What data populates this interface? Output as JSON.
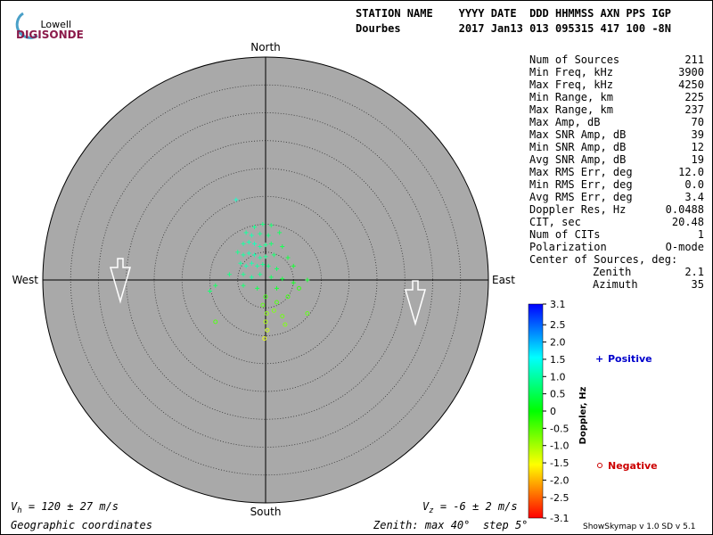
{
  "logo": {
    "top": "Lowell",
    "bottom": "DIGISONDE"
  },
  "header": {
    "line1": "STATION NAME    YYYY DATE  DDD HHMMSS AXN PPS IGP",
    "line2": "Dourbes         2017 Jan13 013 095315 417 100 -8N"
  },
  "compass": {
    "north": "North",
    "south": "South",
    "west": "West",
    "east": "East"
  },
  "stats": [
    [
      "Num of Sources",
      "211"
    ],
    [
      "Min Freq, kHz",
      "3900"
    ],
    [
      "Max Freq, kHz",
      "4250"
    ],
    [
      "Min Range, km",
      "225"
    ],
    [
      "Max Range, km",
      "237"
    ],
    [
      "Max Amp, dB",
      "70"
    ],
    [
      "Max SNR Amp, dB",
      "39"
    ],
    [
      "Min SNR Amp, dB",
      "12"
    ],
    [
      "Avg SNR Amp, dB",
      "19"
    ],
    [
      "Max RMS Err, deg",
      "12.0"
    ],
    [
      "Min RMS Err, deg",
      "0.0"
    ],
    [
      "Avg RMS Err, deg",
      "3.4"
    ],
    [
      "Doppler Res, Hz",
      "0.0488"
    ],
    [
      "CIT, sec",
      "20.48"
    ],
    [
      "Num of CITs",
      "1"
    ],
    [
      "Polarization",
      "O-mode"
    ]
  ],
  "center_of_sources": {
    "title": "Center of Sources, deg:",
    "rows": [
      [
        "Zenith",
        "2.1"
      ],
      [
        "Azimuth",
        "35"
      ]
    ]
  },
  "colorbar": {
    "label": "Doppler, Hz",
    "lim": [
      -3.1,
      3.1
    ],
    "ticks": [
      3.1,
      2.5,
      {
        "value": 2,
        "label": "2.0"
      },
      1.5,
      {
        "value": 1,
        "label": "1.0"
      },
      0.5,
      0,
      -0.5,
      {
        "value": -1,
        "label": "-1.0"
      },
      -1.5,
      {
        "value": -2,
        "label": "-2.0"
      },
      -2.5,
      -3.1
    ]
  },
  "legend": {
    "positive": "Positive",
    "negative": "Negative"
  },
  "zenith_max": 40,
  "sources": [
    [
      -5.3,
      14.4,
      1.2
    ],
    [
      -2.0,
      9.5,
      0.8
    ],
    [
      -0.5,
      10,
      0.7
    ],
    [
      1.0,
      9.8,
      0.6
    ],
    [
      -3.5,
      8.5,
      0.9
    ],
    [
      -2.5,
      8.0,
      1.0
    ],
    [
      -1.0,
      8.3,
      0.8
    ],
    [
      0.5,
      8.0,
      0.7
    ],
    [
      2.5,
      8.5,
      0.5
    ],
    [
      -4.0,
      6.5,
      0.9
    ],
    [
      -3.0,
      6.8,
      1.0
    ],
    [
      -2.0,
      6.5,
      1.1
    ],
    [
      -1.0,
      6.0,
      0.9
    ],
    [
      0.0,
      6.3,
      0.8
    ],
    [
      1.0,
      6.5,
      0.6
    ],
    [
      3.0,
      6.0,
      0.4
    ],
    [
      -5.0,
      5.0,
      0.8
    ],
    [
      -4.0,
      4.5,
      0.9
    ],
    [
      -3.0,
      4.8,
      1.0
    ],
    [
      -2.0,
      4.5,
      1.0
    ],
    [
      -1.0,
      4.0,
      0.9
    ],
    [
      0.0,
      4.2,
      0.8
    ],
    [
      1.5,
      4.5,
      0.6
    ],
    [
      4.0,
      4.0,
      0.3
    ],
    [
      -4.5,
      3.0,
      0.9
    ],
    [
      -3.5,
      2.5,
      1.0
    ],
    [
      -2.5,
      3.0,
      1.0
    ],
    [
      -1.5,
      2.5,
      0.9
    ],
    [
      -0.5,
      2.8,
      0.8
    ],
    [
      0.5,
      2.5,
      0.7
    ],
    [
      2.0,
      2.0,
      0.5
    ],
    [
      5.0,
      2.5,
      0.2
    ],
    [
      -6.5,
      1.0,
      0.7
    ],
    [
      -4.0,
      1.0,
      0.8
    ],
    [
      -2.5,
      0.5,
      0.9
    ],
    [
      -1.0,
      1.0,
      0.8
    ],
    [
      1.0,
      0.5,
      0.5
    ],
    [
      3.0,
      0.2,
      0.3
    ],
    [
      7.5,
      0.0,
      0.2
    ],
    [
      -10,
      -2.0,
      0.6
    ],
    [
      -9,
      -1.0,
      0.5
    ],
    [
      -4.0,
      -1.0,
      0.6
    ],
    [
      -1.5,
      -1.5,
      0.4
    ],
    [
      2.0,
      -1.5,
      0.2
    ],
    [
      5.0,
      -0.5,
      0.1
    ],
    [
      0.0,
      -3.0,
      -0.3
    ],
    [
      -0.5,
      -4.5,
      -0.5
    ],
    [
      0.2,
      -6.0,
      -0.8
    ],
    [
      0.0,
      -7.5,
      -1.0
    ],
    [
      0.3,
      -9.0,
      -1.2
    ],
    [
      2.0,
      -4.0,
      -0.4
    ],
    [
      3.0,
      -6.5,
      -0.6
    ],
    [
      4.0,
      -3.0,
      -0.3
    ],
    [
      7.5,
      -6.0,
      -0.5
    ],
    [
      -9.0,
      -7.5,
      -0.4
    ],
    [
      1.5,
      -5.5,
      -0.7
    ],
    [
      -0.2,
      -10.5,
      -1.4
    ],
    [
      6.0,
      -1.5,
      -0.2
    ],
    [
      3.5,
      -8.0,
      -0.7
    ]
  ],
  "footer": {
    "vh_sym": "V",
    "vh_sub": "h",
    "vh_text": " = 120 ± 27 m/s",
    "vz_sym": "V",
    "vz_sub": "z",
    "vz_text": " = -6 ± 2 m/s",
    "coords": "Geographic coordinates",
    "zenith": "Zenith: max 40°  step 5°",
    "version": "ShowSkymap v 1.0  SD v 5.1"
  }
}
